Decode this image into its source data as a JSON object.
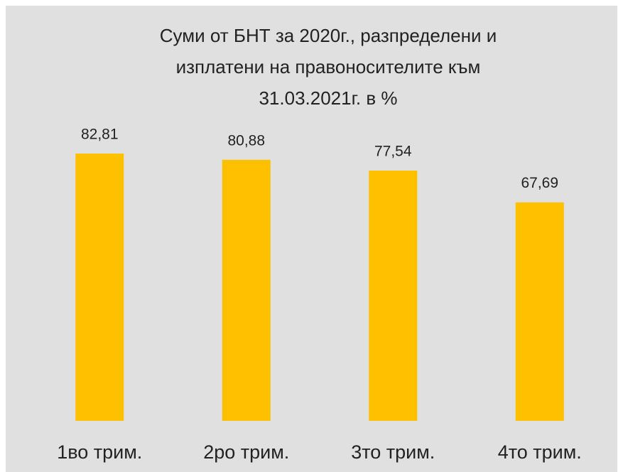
{
  "chart_data": {
    "type": "bar",
    "title": [
      "Суми от БНТ за 2020г., разпределени и",
      "изплатени на правоносителите към",
      "31.03.2021г. в %"
    ],
    "categories": [
      "1во трим.",
      "2ро трим.",
      "3то трим.",
      "4то трим."
    ],
    "values": [
      82.81,
      80.88,
      77.54,
      67.69
    ],
    "value_labels": [
      "82,81",
      "80,88",
      "77,54",
      "67,69"
    ],
    "color": "#ffc000"
  }
}
